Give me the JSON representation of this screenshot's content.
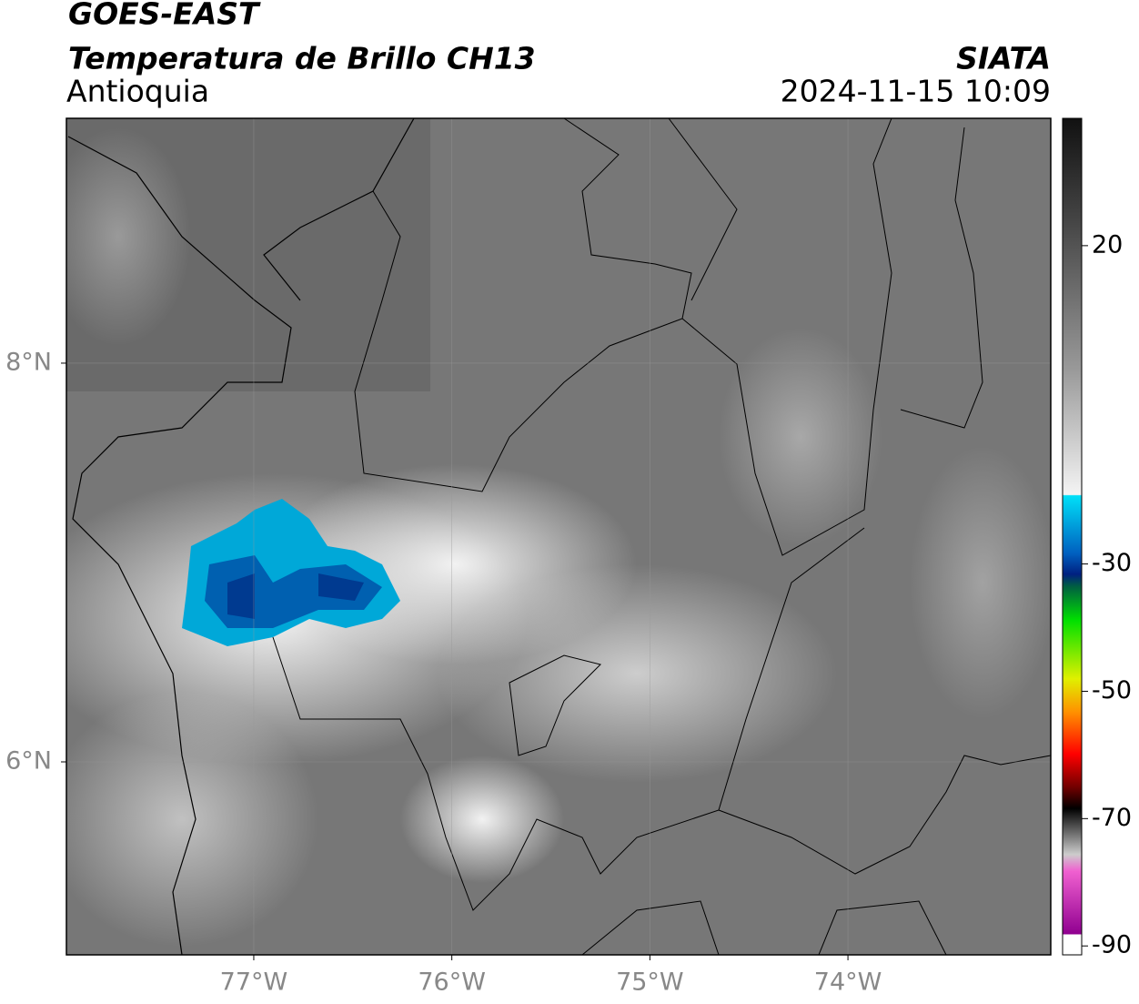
{
  "header": {
    "title": "GOES-EAST",
    "subtitle": "Temperatura de Brillo CH13",
    "region": "Antioquia",
    "source": "SIATA",
    "datetime": "2024-11-15 10:09"
  },
  "map": {
    "xlim": [
      -77.946,
      -72.976
    ],
    "ylim": [
      5.032,
      9.228
    ],
    "xticks": [
      {
        "value": -77,
        "label": "77°W"
      },
      {
        "value": -76,
        "label": "76°W"
      },
      {
        "value": -75,
        "label": "75°W"
      },
      {
        "value": -74,
        "label": "74°W"
      }
    ],
    "yticks": [
      {
        "value": 8,
        "label": "8°N"
      },
      {
        "value": 6,
        "label": "6°N"
      }
    ],
    "grid": true
  },
  "colorbar": {
    "lim": [
      -91.4,
      40
    ],
    "ticks": [
      20,
      -30,
      -50,
      -70,
      -90
    ]
  }
}
